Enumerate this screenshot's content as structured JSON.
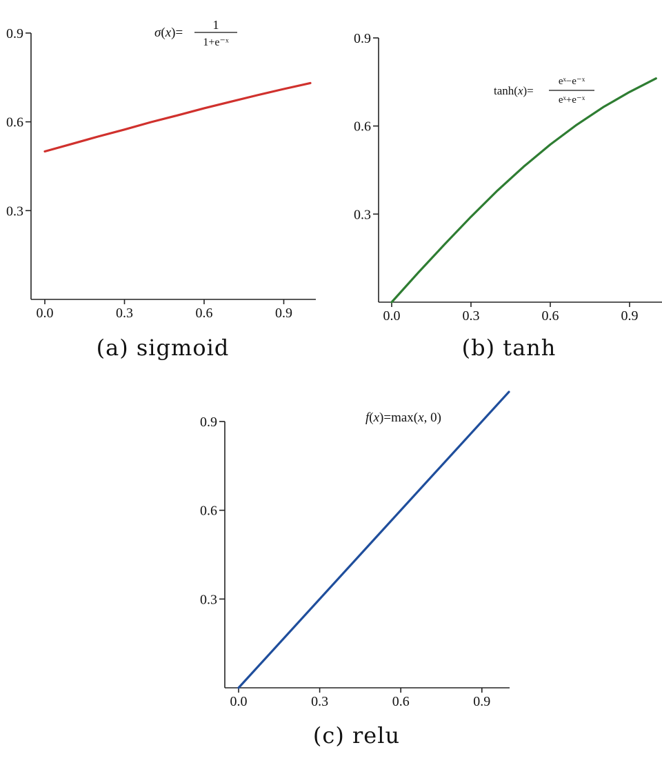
{
  "chart_data": [
    {
      "type": "line",
      "caption": "(a) sigmoid",
      "formula": {
        "lhs": "σ(x)=",
        "numerator": "1",
        "denominator": "1+e⁻ˣ"
      },
      "xlim": [
        0,
        1.0
      ],
      "ylim": [
        0,
        0.9
      ],
      "x_ticks": [
        "0.0",
        "0.3",
        "0.6",
        "0.9"
      ],
      "y_ticks": [
        "0.3",
        "0.6",
        "0.9"
      ],
      "color": "#d0312d",
      "series": [
        {
          "x": [
            0.0,
            0.1,
            0.2,
            0.3,
            0.4,
            0.5,
            0.6,
            0.7,
            0.8,
            0.9,
            1.0
          ],
          "y": [
            0.5,
            0.525,
            0.55,
            0.574,
            0.599,
            0.622,
            0.646,
            0.668,
            0.69,
            0.711,
            0.731
          ]
        }
      ]
    },
    {
      "type": "line",
      "caption": "(b) tanh",
      "formula": {
        "lhs": "tanh(x)=",
        "numerator": "eˣ−e⁻ˣ",
        "denominator": "eˣ+e⁻ˣ"
      },
      "xlim": [
        0,
        1.0
      ],
      "ylim": [
        0,
        0.9
      ],
      "x_ticks": [
        "0.0",
        "0.3",
        "0.6",
        "0.9"
      ],
      "y_ticks": [
        "0.3",
        "0.6",
        "0.9"
      ],
      "color": "#2e7d32",
      "series": [
        {
          "x": [
            0.0,
            0.1,
            0.2,
            0.3,
            0.4,
            0.5,
            0.6,
            0.7,
            0.8,
            0.9,
            1.0
          ],
          "y": [
            0.0,
            0.1,
            0.197,
            0.291,
            0.38,
            0.462,
            0.537,
            0.604,
            0.664,
            0.716,
            0.762
          ]
        }
      ]
    },
    {
      "type": "line",
      "caption": "(c) relu",
      "formula": {
        "lhs": "f(x)=max(x, 0)"
      },
      "xlim": [
        0,
        1.0
      ],
      "ylim": [
        0,
        0.9
      ],
      "x_ticks": [
        "0.0",
        "0.3",
        "0.6",
        "0.9"
      ],
      "y_ticks": [
        "0.3",
        "0.6",
        "0.9"
      ],
      "color": "#1f4e9c",
      "series": [
        {
          "x": [
            0.0,
            0.5,
            1.0
          ],
          "y": [
            0.0,
            0.5,
            1.0
          ]
        }
      ]
    }
  ]
}
